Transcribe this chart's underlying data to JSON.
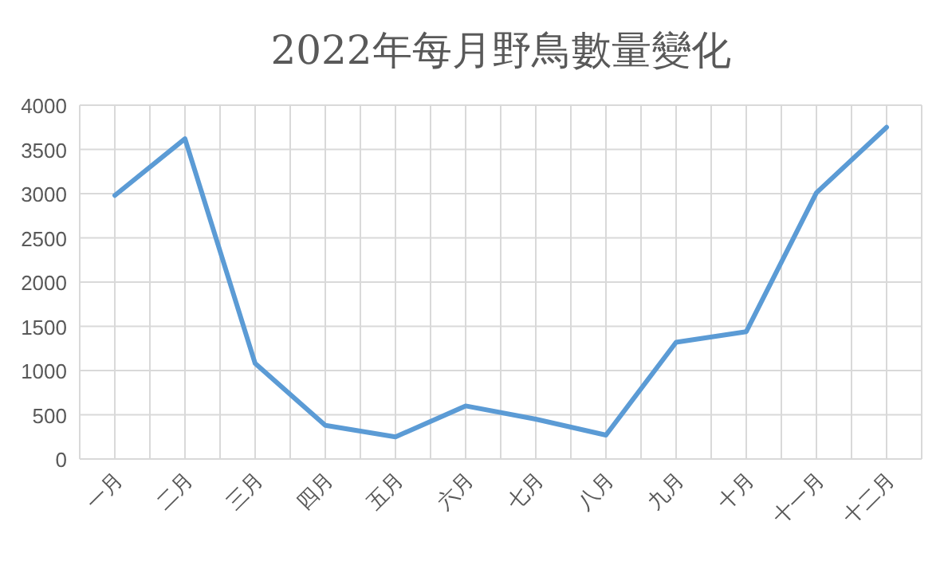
{
  "chart_data": {
    "type": "line",
    "title": "2022年每月野鳥數量變化",
    "categories": [
      "一月",
      "二月",
      "三月",
      "四月",
      "五月",
      "六月",
      "七月",
      "八月",
      "九月",
      "十月",
      "十一月",
      "十二月"
    ],
    "values": [
      2980,
      3620,
      1080,
      380,
      250,
      600,
      450,
      270,
      1320,
      1440,
      3010,
      3750
    ],
    "color": "#5b9bd5",
    "ylim": [
      0,
      4000
    ],
    "yticks": [
      0,
      500,
      1000,
      1500,
      2000,
      2500,
      3000,
      3500,
      4000
    ],
    "grid": true,
    "marker": "none",
    "line_style": "solid"
  }
}
